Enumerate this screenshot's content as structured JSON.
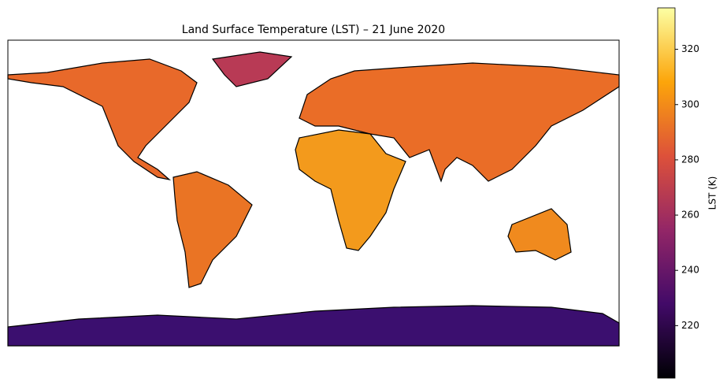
{
  "title": "Land Surface Temperature (LST) – 21 June 2020",
  "colorbar": {
    "label": "LST (K)",
    "lim": [
      201,
      335
    ],
    "ticks": [
      220,
      240,
      260,
      280,
      300,
      320
    ],
    "colormap": "inferno"
  }
}
